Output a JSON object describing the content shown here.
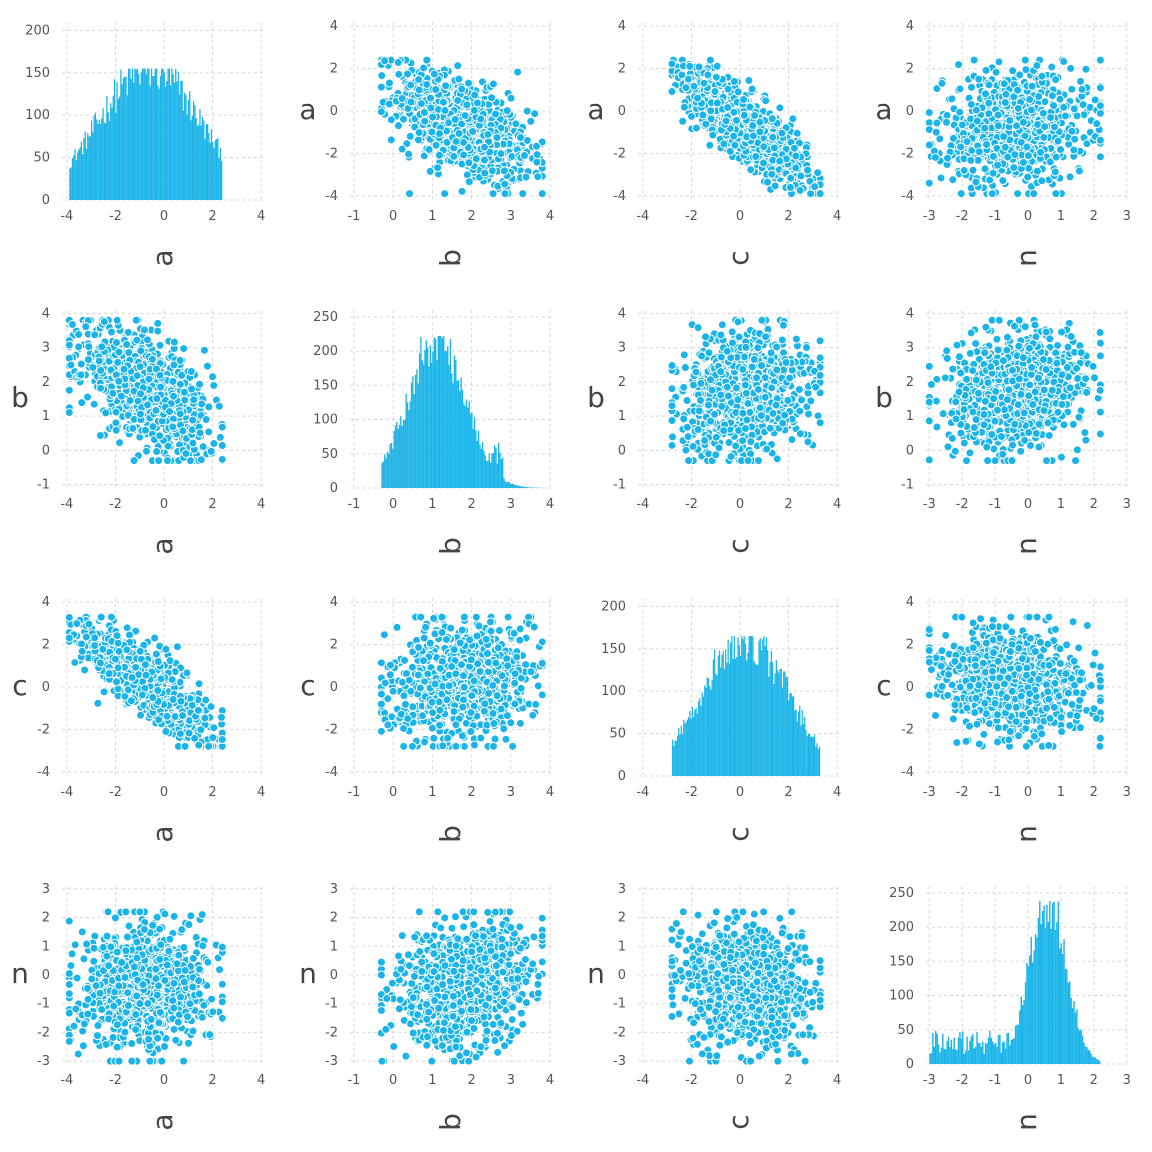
{
  "chart_data": {
    "type": "scatter-matrix",
    "variables": [
      "a",
      "b",
      "c",
      "n"
    ],
    "point_color": "#1ab4e8",
    "point_edge_color": "#ffffff",
    "bar_color": "#1ab4e8",
    "axes": {
      "a": {
        "ticks": [
          -4,
          -2,
          0,
          2,
          4
        ],
        "range": [
          -4.2,
          4.2
        ],
        "data_range": [
          -3.9,
          2.4
        ]
      },
      "b": {
        "ticks": [
          -1,
          0,
          1,
          2,
          3,
          4
        ],
        "range": [
          -1.1,
          4.1
        ],
        "data_range": [
          -0.3,
          3.8
        ]
      },
      "c": {
        "ticks": [
          -4,
          -2,
          0,
          2,
          4
        ],
        "range": [
          -4.2,
          4.2
        ],
        "data_range": [
          -2.8,
          3.3
        ]
      },
      "n": {
        "ticks": [
          -3,
          -2,
          -1,
          0,
          1,
          2,
          3
        ],
        "range": [
          -3.1,
          3.1
        ],
        "data_range": [
          -3.0,
          2.2
        ]
      }
    },
    "scatter_y_axes": {
      "a": {
        "ticks": [
          -4,
          -2,
          0,
          2,
          4
        ],
        "range": [
          -4.2,
          4.2
        ]
      },
      "b": {
        "ticks": [
          -1,
          0,
          1,
          2,
          3,
          4
        ],
        "range": [
          -1.1,
          4.1
        ]
      },
      "c": {
        "ticks": [
          -4,
          -2,
          0,
          2,
          4
        ],
        "range": [
          -4.2,
          4.2
        ]
      },
      "n": {
        "ticks": [
          -3,
          -2,
          -1,
          0,
          1,
          2,
          3
        ],
        "range": [
          -3.1,
          3.1
        ]
      }
    },
    "histograms": {
      "a": {
        "yticks": [
          0,
          50,
          100,
          150,
          200
        ],
        "ylim": [
          0,
          210
        ],
        "peak": 155,
        "center": -0.6,
        "spread": 1.3
      },
      "b": {
        "yticks": [
          0,
          50,
          100,
          150,
          200,
          250
        ],
        "ylim": [
          0,
          260
        ],
        "peak": 222,
        "center": 1.1,
        "spread": 0.45
      },
      "c": {
        "yticks": [
          0,
          50,
          100,
          150,
          200
        ],
        "ylim": [
          0,
          210
        ],
        "peak": 165,
        "center": 0.2,
        "spread": 1.1
      },
      "n": {
        "yticks": [
          0,
          50,
          100,
          150,
          200,
          250
        ],
        "ylim": [
          0,
          260
        ],
        "peak": 238,
        "center": 0.6,
        "spread": 0.35
      }
    },
    "correlations": {
      "a-b": -0.55,
      "a-c": -0.8,
      "a-n": 0.1,
      "b-c": 0.15,
      "b-n": 0.2,
      "c-n": -0.1
    },
    "points_per_panel": 900
  }
}
